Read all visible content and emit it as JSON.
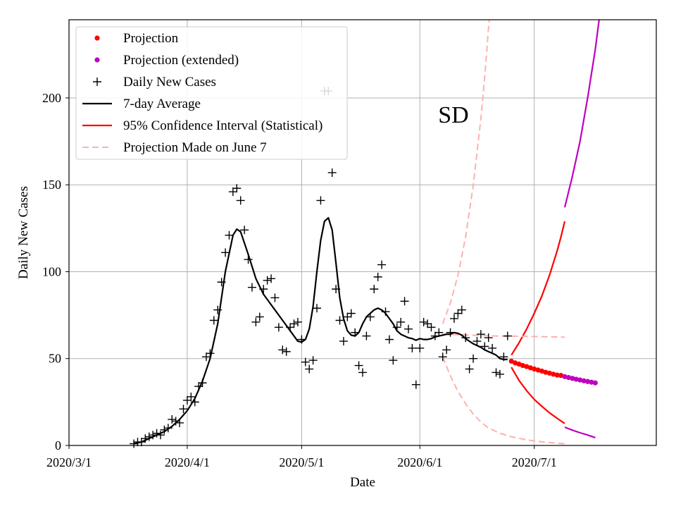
{
  "chart_data": {
    "type": "line",
    "annotation": "SD",
    "xlabel": "Date",
    "ylabel": "Daily New Cases",
    "ylim": [
      0,
      245
    ],
    "xlim_day": [
      0,
      154
    ],
    "x_ticks": [
      {
        "label": "2020/3/1",
        "day": 0
      },
      {
        "label": "2020/4/1",
        "day": 31
      },
      {
        "label": "2020/5/1",
        "day": 61
      },
      {
        "label": "2020/6/1",
        "day": 92
      },
      {
        "label": "2020/7/1",
        "day": 122
      }
    ],
    "y_ticks": [
      0,
      50,
      100,
      150,
      200
    ],
    "grid": true,
    "legend": {
      "position": "top-left",
      "entries": [
        {
          "label": "Projection",
          "marker": "dot",
          "color": "#ff0000"
        },
        {
          "label": "Projection (extended)",
          "marker": "dot",
          "color": "#bf00bf"
        },
        {
          "label": "Daily New Cases",
          "marker": "plus",
          "color": "#000000"
        },
        {
          "label": "7-day Average",
          "marker": "line",
          "color": "#000000"
        },
        {
          "label": "95% Confidence Interval (Statistical)",
          "marker": "line",
          "color": "#ff0000"
        },
        {
          "label": "Projection Made on June 7",
          "marker": "dashed",
          "color": "#ffb0b0"
        }
      ]
    },
    "colors": {
      "projection": "#ff0000",
      "extended": "#bf00bf",
      "daily": "#000000",
      "average": "#000000",
      "ci": "#ff0000",
      "june7": "#ffb0b0"
    },
    "series": [
      {
        "name": "Daily New Cases",
        "kind": "scatter",
        "points": [
          [
            17,
            1
          ],
          [
            18,
            2
          ],
          [
            19,
            2
          ],
          [
            20,
            4
          ],
          [
            21,
            5
          ],
          [
            22,
            6
          ],
          [
            23,
            7
          ],
          [
            24,
            6
          ],
          [
            25,
            9
          ],
          [
            26,
            10
          ],
          [
            27,
            15
          ],
          [
            28,
            14
          ],
          [
            29,
            13
          ],
          [
            30,
            21
          ],
          [
            31,
            26
          ],
          [
            32,
            28
          ],
          [
            33,
            25
          ],
          [
            34,
            34
          ],
          [
            35,
            36
          ],
          [
            36,
            51
          ],
          [
            37,
            53
          ],
          [
            38,
            72
          ],
          [
            39,
            78
          ],
          [
            40,
            94
          ],
          [
            41,
            111
          ],
          [
            42,
            121
          ],
          [
            43,
            146
          ],
          [
            44,
            148
          ],
          [
            45,
            141
          ],
          [
            46,
            124
          ],
          [
            47,
            107
          ],
          [
            48,
            91
          ],
          [
            49,
            71
          ],
          [
            50,
            74
          ],
          [
            51,
            90
          ],
          [
            52,
            95
          ],
          [
            53,
            96
          ],
          [
            54,
            85
          ],
          [
            55,
            68
          ],
          [
            56,
            55
          ],
          [
            57,
            54
          ],
          [
            58,
            68
          ],
          [
            59,
            70
          ],
          [
            60,
            71
          ],
          [
            61,
            61
          ],
          [
            62,
            48
          ],
          [
            63,
            44
          ],
          [
            64,
            49
          ],
          [
            65,
            79
          ],
          [
            66,
            141
          ],
          [
            67,
            204
          ],
          [
            68,
            204
          ],
          [
            69,
            157
          ],
          [
            70,
            90
          ],
          [
            71,
            72
          ],
          [
            72,
            60
          ],
          [
            73,
            74
          ],
          [
            74,
            76
          ],
          [
            75,
            65
          ],
          [
            76,
            46
          ],
          [
            77,
            42
          ],
          [
            78,
            63
          ],
          [
            79,
            74
          ],
          [
            80,
            90
          ],
          [
            81,
            97
          ],
          [
            82,
            104
          ],
          [
            83,
            77
          ],
          [
            84,
            61
          ],
          [
            85,
            49
          ],
          [
            86,
            68
          ],
          [
            87,
            71
          ],
          [
            88,
            83
          ],
          [
            89,
            67
          ],
          [
            90,
            56
          ],
          [
            91,
            35
          ],
          [
            92,
            56
          ],
          [
            93,
            71
          ],
          [
            94,
            70
          ],
          [
            95,
            68
          ],
          [
            96,
            63
          ],
          [
            97,
            65
          ],
          [
            98,
            51
          ],
          [
            99,
            55
          ],
          [
            100,
            65
          ],
          [
            101,
            73
          ],
          [
            102,
            76
          ],
          [
            103,
            78
          ],
          [
            104,
            62
          ],
          [
            105,
            44
          ],
          [
            106,
            50
          ],
          [
            107,
            60
          ],
          [
            108,
            64
          ],
          [
            109,
            57
          ],
          [
            110,
            62
          ],
          [
            111,
            56
          ],
          [
            112,
            42
          ],
          [
            113,
            41
          ],
          [
            114,
            51
          ],
          [
            115,
            63
          ]
        ]
      },
      {
        "name": "7-day Average",
        "kind": "line",
        "points": [
          [
            17,
            1
          ],
          [
            19,
            2
          ],
          [
            21,
            4
          ],
          [
            23,
            6
          ],
          [
            25,
            8
          ],
          [
            27,
            11
          ],
          [
            29,
            15
          ],
          [
            31,
            20
          ],
          [
            33,
            27
          ],
          [
            35,
            37
          ],
          [
            37,
            50
          ],
          [
            39,
            70
          ],
          [
            41,
            100
          ],
          [
            43,
            121
          ],
          [
            44,
            124.5
          ],
          [
            45,
            123
          ],
          [
            47,
            110
          ],
          [
            49,
            96
          ],
          [
            51,
            87
          ],
          [
            53,
            81
          ],
          [
            55,
            75
          ],
          [
            57,
            69
          ],
          [
            59,
            63
          ],
          [
            60,
            60
          ],
          [
            61,
            59.5
          ],
          [
            62,
            61
          ],
          [
            63,
            67
          ],
          [
            64,
            80
          ],
          [
            65,
            100
          ],
          [
            66,
            118
          ],
          [
            67,
            129
          ],
          [
            68,
            131
          ],
          [
            69,
            124
          ],
          [
            70,
            105
          ],
          [
            71,
            85
          ],
          [
            72,
            73
          ],
          [
            73,
            66
          ],
          [
            74,
            63.5
          ],
          [
            75,
            63
          ],
          [
            76,
            65
          ],
          [
            77,
            70
          ],
          [
            78,
            74
          ],
          [
            80,
            78
          ],
          [
            81,
            79
          ],
          [
            82,
            78
          ],
          [
            83,
            76
          ],
          [
            84,
            73
          ],
          [
            85,
            70
          ],
          [
            86,
            66
          ],
          [
            87,
            64
          ],
          [
            88,
            63
          ],
          [
            89,
            62
          ],
          [
            90,
            61.5
          ],
          [
            91,
            60.5
          ],
          [
            92,
            61.5
          ],
          [
            93,
            61
          ],
          [
            94,
            61
          ],
          [
            95,
            61.5
          ],
          [
            96,
            62.5
          ],
          [
            97,
            63
          ],
          [
            98,
            63.5
          ],
          [
            99,
            64
          ],
          [
            100,
            64
          ],
          [
            101,
            65
          ],
          [
            102,
            64.5
          ],
          [
            103,
            63.5
          ],
          [
            104,
            61.5
          ],
          [
            105,
            60
          ],
          [
            106,
            58.5
          ],
          [
            107,
            57.5
          ],
          [
            108,
            56.5
          ],
          [
            109,
            55
          ],
          [
            110,
            54
          ],
          [
            111,
            53
          ],
          [
            112,
            52
          ],
          [
            113,
            50
          ],
          [
            114,
            49.5
          ],
          [
            115,
            49.5
          ]
        ]
      },
      {
        "name": "Projection",
        "kind": "dots",
        "points": [
          [
            116,
            48.5
          ],
          [
            117,
            47.5
          ],
          [
            118,
            46.8
          ],
          [
            119,
            46
          ],
          [
            120,
            45.4
          ],
          [
            121,
            44.7
          ],
          [
            122,
            44
          ],
          [
            123,
            43.4
          ],
          [
            124,
            42.8
          ],
          [
            125,
            42.1
          ],
          [
            126,
            41.6
          ],
          [
            127,
            41
          ],
          [
            128,
            40.5
          ],
          [
            129,
            40.3
          ]
        ]
      },
      {
        "name": "Projection (extended)",
        "kind": "dots",
        "points": [
          [
            130,
            39.6
          ],
          [
            131,
            39.1
          ],
          [
            132,
            38.6
          ],
          [
            133,
            38.1
          ],
          [
            134,
            37.7
          ],
          [
            135,
            37.2
          ],
          [
            136,
            36.8
          ],
          [
            137,
            36.4
          ],
          [
            138,
            36
          ]
        ]
      },
      {
        "name": "95% Confidence Interval (Statistical) upper",
        "kind": "line",
        "points": [
          [
            116,
            52
          ],
          [
            118,
            59
          ],
          [
            120,
            67
          ],
          [
            122,
            76
          ],
          [
            124,
            86
          ],
          [
            126,
            98
          ],
          [
            128,
            112
          ],
          [
            129,
            120
          ],
          [
            130,
            129
          ]
        ]
      },
      {
        "name": "95% Confidence Interval (Statistical) lower",
        "kind": "line",
        "points": [
          [
            116,
            45
          ],
          [
            118,
            37.5
          ],
          [
            120,
            31.5
          ],
          [
            122,
            26.5
          ],
          [
            124,
            22.5
          ],
          [
            126,
            18.8
          ],
          [
            128,
            15.6
          ],
          [
            130,
            12.6
          ]
        ]
      },
      {
        "name": "Confidence Interval (extended) upper",
        "kind": "line",
        "points": [
          [
            130,
            137
          ],
          [
            132,
            155
          ],
          [
            134,
            175
          ],
          [
            136,
            200
          ],
          [
            138,
            228
          ],
          [
            139,
            245
          ]
        ]
      },
      {
        "name": "Confidence Interval (extended) lower",
        "kind": "line",
        "points": [
          [
            130,
            10.5
          ],
          [
            132,
            8.8
          ],
          [
            134,
            7.3
          ],
          [
            136,
            6.0
          ],
          [
            138,
            4.5
          ]
        ]
      },
      {
        "name": "Projection Made on June 7 upper",
        "kind": "dashed",
        "points": [
          [
            98,
            70
          ],
          [
            100,
            82
          ],
          [
            102,
            98
          ],
          [
            104,
            120
          ],
          [
            106,
            150
          ],
          [
            108,
            188
          ],
          [
            109,
            212
          ],
          [
            110,
            240
          ],
          [
            110.2,
            245
          ]
        ]
      },
      {
        "name": "Projection Made on June 7 central",
        "kind": "dashed",
        "points": [
          [
            98,
            64
          ],
          [
            105,
            63.5
          ],
          [
            112,
            63
          ],
          [
            120,
            62.8
          ],
          [
            130,
            62.3
          ]
        ]
      },
      {
        "name": "Projection Made on June 7 lower",
        "kind": "dashed",
        "points": [
          [
            98,
            51
          ],
          [
            100,
            40
          ],
          [
            102,
            31
          ],
          [
            104,
            24
          ],
          [
            106,
            18
          ],
          [
            108,
            13.5
          ],
          [
            110,
            10
          ],
          [
            113,
            7
          ],
          [
            116,
            5
          ],
          [
            120,
            3.2
          ],
          [
            125,
            1.8
          ],
          [
            130,
            1
          ]
        ]
      }
    ]
  }
}
